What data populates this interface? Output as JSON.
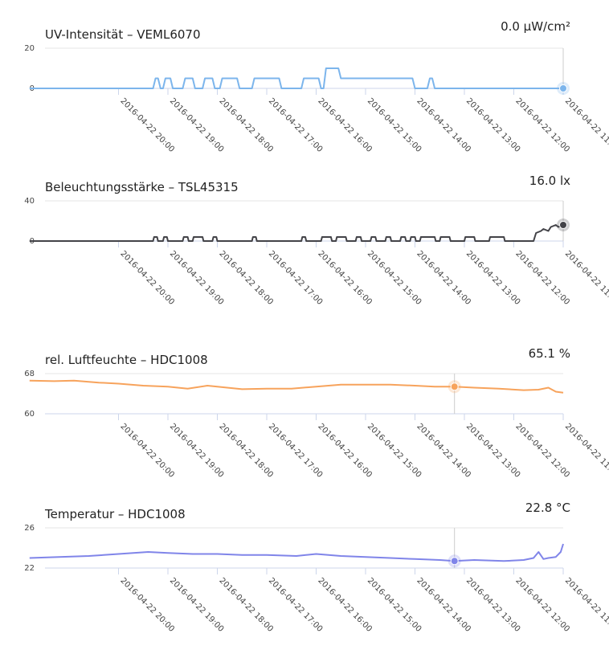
{
  "chart_data": [
    {
      "type": "line",
      "title": "UV-Intensität – VEML6070",
      "current_value": "0.0 µW/cm²",
      "color": "#7cb5ec",
      "ylim": [
        0,
        20
      ],
      "yticks": [
        "20",
        "0"
      ],
      "x_reversed": true,
      "xticks": [
        "2016-04-22 20:00",
        "2016-04-22 19:00",
        "2016-04-22 18:00",
        "2016-04-22 17:00",
        "2016-04-22 16:00",
        "2016-04-22 15:00",
        "2016-04-22 14:00",
        "2016-04-22 13:00",
        "2016-04-22 12:00",
        "2016-04-22 11:00"
      ],
      "hover_marker": {
        "hours_before_11": 0
      },
      "series": [
        {
          "x_hours_before_11": [
            10.8,
            8.3,
            8.25,
            8.2,
            8.15,
            8.1,
            8.05,
            7.95,
            7.9,
            7.7,
            7.65,
            7.5,
            7.45,
            7.3,
            7.25,
            7.1,
            7.05,
            6.95,
            6.9,
            6.6,
            6.55,
            6.3,
            6.25,
            5.75,
            5.7,
            5.3,
            5.25,
            4.95,
            4.9,
            4.85,
            4.8,
            4.55,
            4.5,
            3.85,
            3.8,
            3.05,
            3.0,
            2.75,
            2.7,
            2.65,
            2.6,
            0.0
          ],
          "values": [
            0,
            0,
            5,
            5,
            0,
            0,
            5,
            5,
            0,
            0,
            5,
            5,
            0,
            0,
            5,
            5,
            0,
            0,
            5,
            5,
            0,
            0,
            5,
            5,
            0,
            0,
            5,
            5,
            0,
            0,
            10,
            10,
            5,
            5,
            5,
            5,
            0,
            0,
            5,
            5,
            0,
            0
          ]
        }
      ]
    },
    {
      "type": "line",
      "title": "Beleuchtungsstärke – TSL45315",
      "current_value": "16.0 lx",
      "color": "#434348",
      "ylim": [
        0,
        40
      ],
      "yticks": [
        "40",
        "0"
      ],
      "x_reversed": true,
      "xticks": [
        "2016-04-22 20:00",
        "2016-04-22 19:00",
        "2016-04-22 18:00",
        "2016-04-22 17:00",
        "2016-04-22 16:00",
        "2016-04-22 15:00",
        "2016-04-22 14:00",
        "2016-04-22 13:00",
        "2016-04-22 12:00",
        "2016-04-22 11:00"
      ],
      "hover_marker": {
        "hours_before_11": 0
      },
      "series": [
        {
          "x_hours_before_11": [
            10.8,
            8.3,
            8.28,
            8.22,
            8.2,
            8.1,
            8.08,
            8.02,
            8.0,
            7.7,
            7.68,
            7.6,
            7.58,
            7.5,
            7.48,
            7.3,
            7.28,
            7.1,
            7.08,
            7.02,
            7.0,
            6.3,
            6.28,
            6.22,
            6.2,
            5.3,
            5.28,
            5.22,
            5.2,
            4.9,
            4.88,
            4.7,
            4.68,
            4.6,
            4.58,
            4.4,
            4.38,
            4.2,
            4.18,
            4.1,
            4.08,
            3.9,
            3.88,
            3.8,
            3.78,
            3.6,
            3.58,
            3.5,
            3.48,
            3.3,
            3.28,
            3.2,
            3.18,
            3.1,
            3.08,
            3.0,
            2.98,
            2.9,
            2.88,
            2.6,
            2.58,
            2.5,
            2.48,
            2.3,
            2.28,
            2.0,
            1.98,
            1.8,
            1.78,
            1.5,
            1.48,
            1.2,
            1.18,
            0.6,
            0.55,
            0.45,
            0.4,
            0.3,
            0.25,
            0.15,
            0.1,
            0.0
          ],
          "values": [
            0,
            0,
            4,
            4,
            0,
            0,
            4,
            4,
            0,
            0,
            4,
            4,
            0,
            0,
            4,
            4,
            0,
            0,
            4,
            4,
            0,
            0,
            4,
            4,
            0,
            0,
            4,
            4,
            0,
            0,
            4,
            4,
            0,
            0,
            4,
            4,
            0,
            0,
            4,
            4,
            0,
            0,
            4,
            4,
            0,
            0,
            4,
            4,
            0,
            0,
            4,
            4,
            0,
            0,
            4,
            4,
            0,
            0,
            4,
            4,
            0,
            0,
            4,
            4,
            0,
            0,
            4,
            4,
            0,
            0,
            4,
            4,
            0,
            0,
            8,
            10,
            12,
            10,
            14,
            16,
            14,
            16
          ]
        }
      ]
    },
    {
      "type": "line",
      "title": "rel. Luftfeuchte – HDC1008",
      "current_value": "65.1 %",
      "color": "#f7a35c",
      "ylim": [
        60,
        68
      ],
      "yticks": [
        "68",
        "60"
      ],
      "x_reversed": true,
      "xticks": [
        "2016-04-22 20:00",
        "2016-04-22 19:00",
        "2016-04-22 18:00",
        "2016-04-22 17:00",
        "2016-04-22 16:00",
        "2016-04-22 15:00",
        "2016-04-22 14:00",
        "2016-04-22 13:00",
        "2016-04-22 12:00",
        "2016-04-22 11:00"
      ],
      "hover_marker": {
        "hours_before_11": 2.2
      },
      "series": [
        {
          "x_hours_before_11": [
            10.8,
            10.3,
            9.9,
            9.4,
            9.0,
            8.5,
            8.0,
            7.6,
            7.2,
            6.8,
            6.5,
            6.0,
            5.5,
            5.0,
            4.5,
            4.0,
            3.5,
            3.0,
            2.6,
            2.2,
            1.8,
            1.3,
            0.8,
            0.5,
            0.3,
            0.15,
            0.0
          ],
          "values": [
            66.6,
            66.5,
            66.6,
            66.2,
            66.0,
            65.6,
            65.4,
            65.0,
            65.6,
            65.2,
            64.9,
            65.0,
            65.0,
            65.4,
            65.8,
            65.8,
            65.8,
            65.6,
            65.4,
            65.4,
            65.2,
            65.0,
            64.7,
            64.8,
            65.2,
            64.4,
            64.2
          ]
        }
      ]
    },
    {
      "type": "line",
      "title": "Temperatur – HDC1008",
      "current_value": "22.8 °C",
      "color": "#8085e9",
      "ylim": [
        22,
        26
      ],
      "yticks": [
        "26",
        "22"
      ],
      "x_reversed": true,
      "xticks": [
        "2016-04-22 20:00",
        "2016-04-22 19:00",
        "2016-04-22 18:00",
        "2016-04-22 17:00",
        "2016-04-22 16:00",
        "2016-04-22 15:00",
        "2016-04-22 14:00",
        "2016-04-22 13:00",
        "2016-04-22 12:00",
        "2016-04-22 11:00"
      ],
      "hover_marker": {
        "hours_before_11": 2.2
      },
      "series": [
        {
          "x_hours_before_11": [
            10.8,
            10.2,
            9.6,
            9.0,
            8.4,
            8.0,
            7.5,
            7.0,
            6.5,
            6.0,
            5.4,
            5.0,
            4.5,
            4.0,
            3.5,
            3.0,
            2.5,
            2.2,
            1.8,
            1.2,
            0.8,
            0.6,
            0.5,
            0.4,
            0.3,
            0.15,
            0.05,
            0.0
          ],
          "values": [
            23.0,
            23.1,
            23.2,
            23.4,
            23.6,
            23.5,
            23.4,
            23.4,
            23.3,
            23.3,
            23.2,
            23.4,
            23.2,
            23.1,
            23.0,
            22.9,
            22.8,
            22.7,
            22.8,
            22.7,
            22.8,
            23.0,
            23.6,
            22.9,
            23.0,
            23.1,
            23.6,
            24.4
          ]
        }
      ]
    }
  ]
}
